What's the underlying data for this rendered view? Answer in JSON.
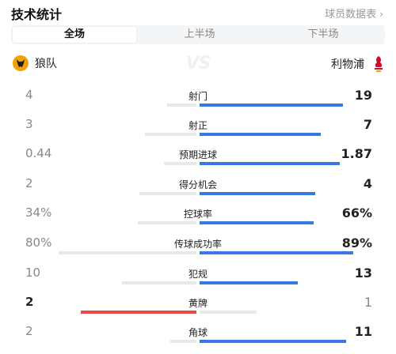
{
  "header": {
    "title": "技术统计",
    "player_stats_link": "球员数据表"
  },
  "tabs": [
    {
      "label": "全场",
      "active": true
    },
    {
      "label": "上半场",
      "active": false
    },
    {
      "label": "下半场",
      "active": false
    }
  ],
  "teams": {
    "home": {
      "name": "狼队",
      "logo": "wolves-crest"
    },
    "away": {
      "name": "利物浦",
      "logo": "liverpool-crest"
    },
    "vs": "VS"
  },
  "colors": {
    "away_bar": "#3679e0",
    "home_lead_bar": "#e64a45",
    "neutral_bar": "#e6e8ec"
  },
  "stats": [
    {
      "label": "射门",
      "home": "4",
      "away": "19",
      "home_ratio": 0.17,
      "away_ratio": 0.83,
      "leader": "away"
    },
    {
      "label": "射正",
      "home": "3",
      "away": "7",
      "home_ratio": 0.3,
      "away_ratio": 0.7,
      "leader": "away"
    },
    {
      "label": "预期进球",
      "home": "0.44",
      "away": "1.87",
      "home_ratio": 0.19,
      "away_ratio": 0.81,
      "leader": "away"
    },
    {
      "label": "得分机会",
      "home": "2",
      "away": "4",
      "home_ratio": 0.33,
      "away_ratio": 0.67,
      "leader": "away"
    },
    {
      "label": "控球率",
      "home": "34%",
      "away": "66%",
      "home_ratio": 0.34,
      "away_ratio": 0.66,
      "leader": "away"
    },
    {
      "label": "传球成功率",
      "home": "80%",
      "away": "89%",
      "home_ratio": 0.8,
      "away_ratio": 0.89,
      "leader": "away"
    },
    {
      "label": "犯规",
      "home": "10",
      "away": "13",
      "home_ratio": 0.43,
      "away_ratio": 0.57,
      "leader": "away"
    },
    {
      "label": "黄牌",
      "home": "2",
      "away": "1",
      "home_ratio": 0.67,
      "away_ratio": 0.33,
      "leader": "home"
    },
    {
      "label": "角球",
      "home": "2",
      "away": "11",
      "home_ratio": 0.15,
      "away_ratio": 0.85,
      "leader": "away"
    }
  ]
}
